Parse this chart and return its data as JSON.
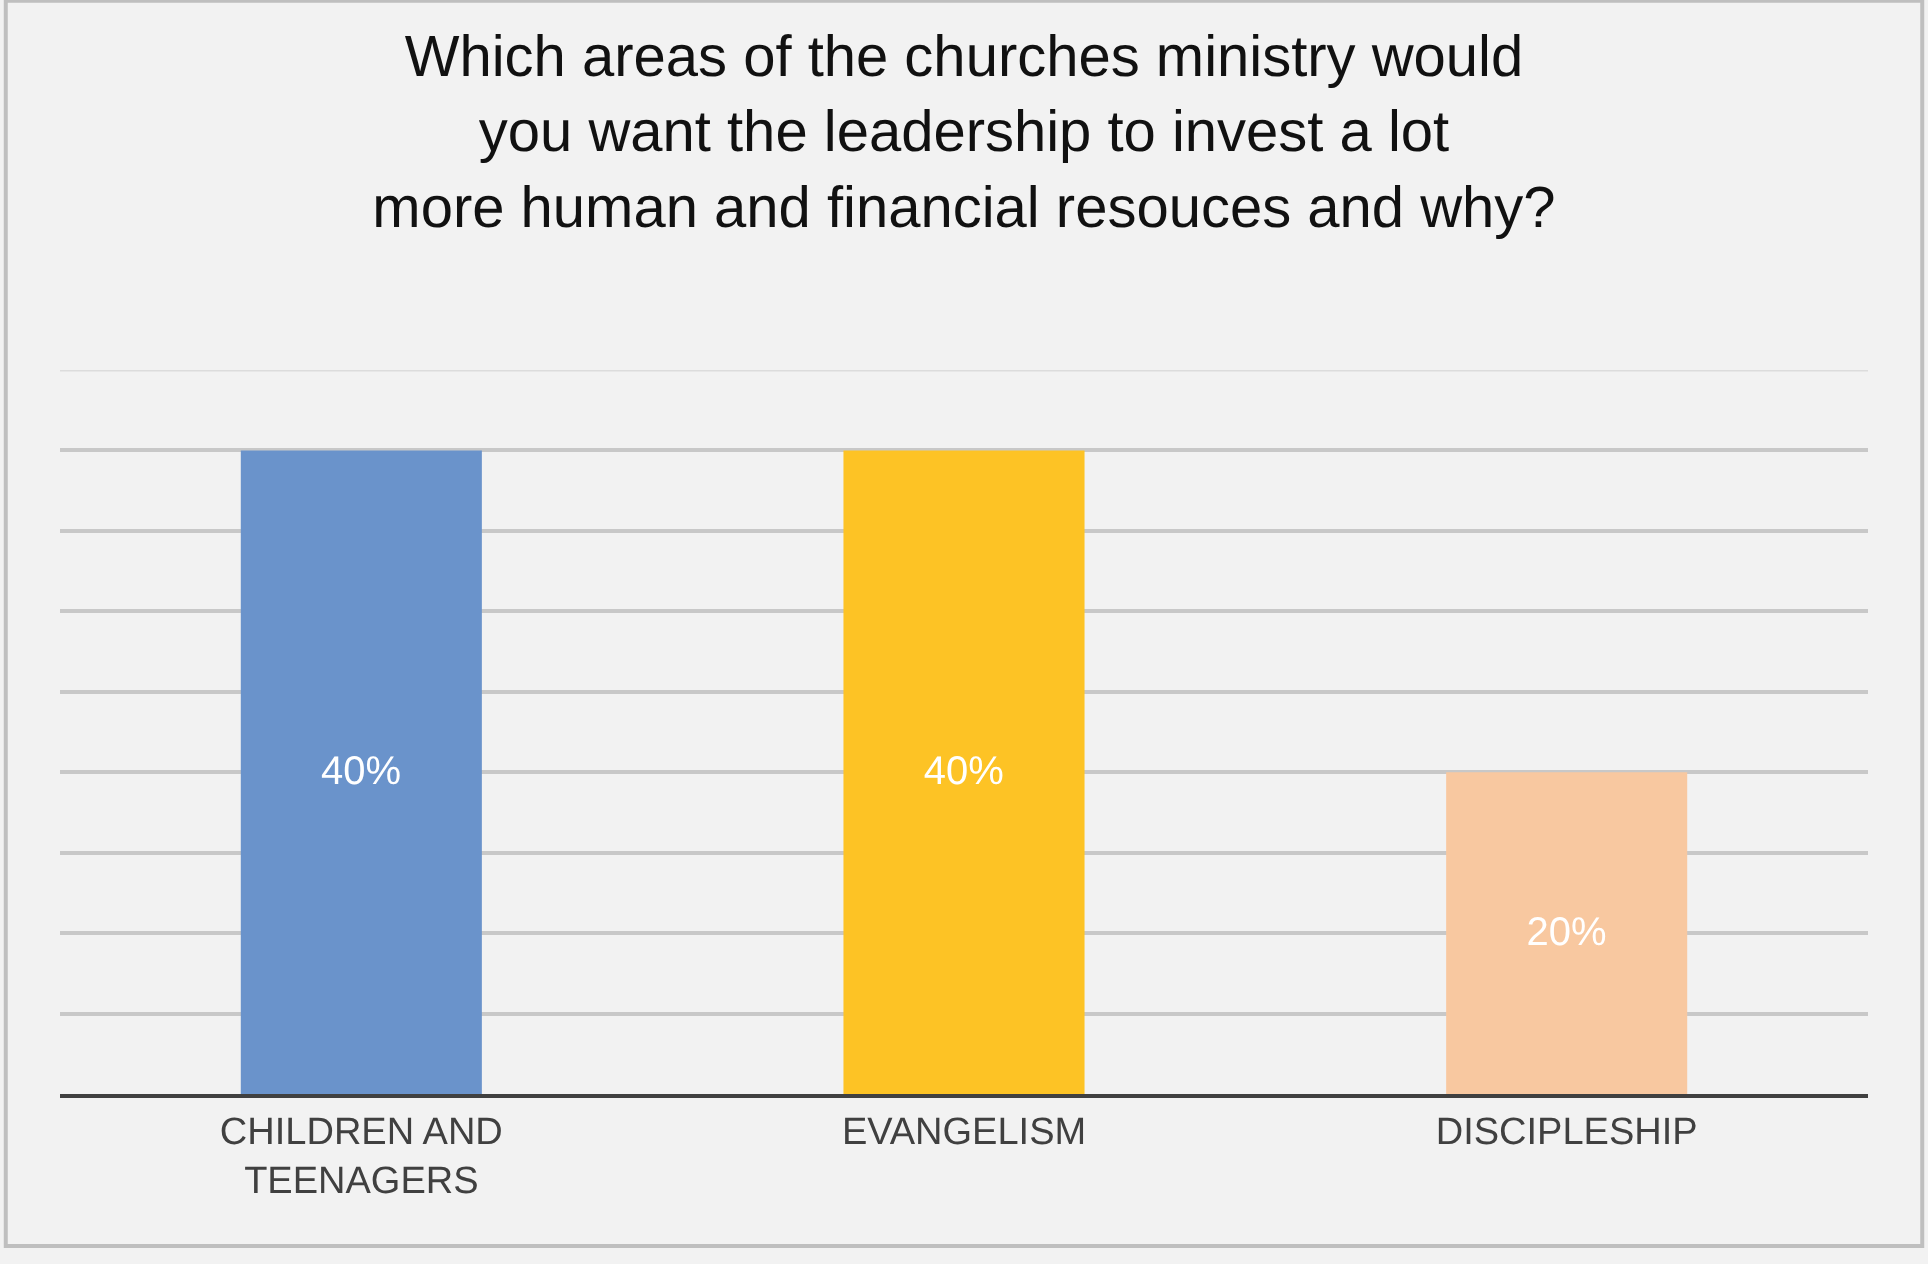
{
  "chart_data": {
    "type": "bar",
    "title": "Which areas of the churches ministry would you want the leadership to invest a lot more human and financial resouces and why?",
    "categories": [
      "CHILDREN AND TEENAGERS",
      "EVANGELISM",
      "DISCIPLESHIP"
    ],
    "values": [
      40,
      40,
      20
    ],
    "colors": [
      "#6a93cb",
      "#fdc325",
      "#f8c8a0"
    ],
    "ylim": [
      0,
      45
    ],
    "yticks": [
      {
        "value": 0,
        "label": null
      },
      {
        "value": 5,
        "label": null
      },
      {
        "value": 10,
        "label": null
      },
      {
        "value": 15,
        "label": null
      },
      {
        "value": 20,
        "label": null
      },
      {
        "value": 25,
        "label": null
      },
      {
        "value": 30,
        "label": null
      },
      {
        "value": 35,
        "label": null
      },
      {
        "value": 40,
        "label": null
      }
    ],
    "value_labels": [
      "40%",
      "40%",
      "20%"
    ],
    "grid": "y",
    "legend": false,
    "tick_labels": "x"
  }
}
